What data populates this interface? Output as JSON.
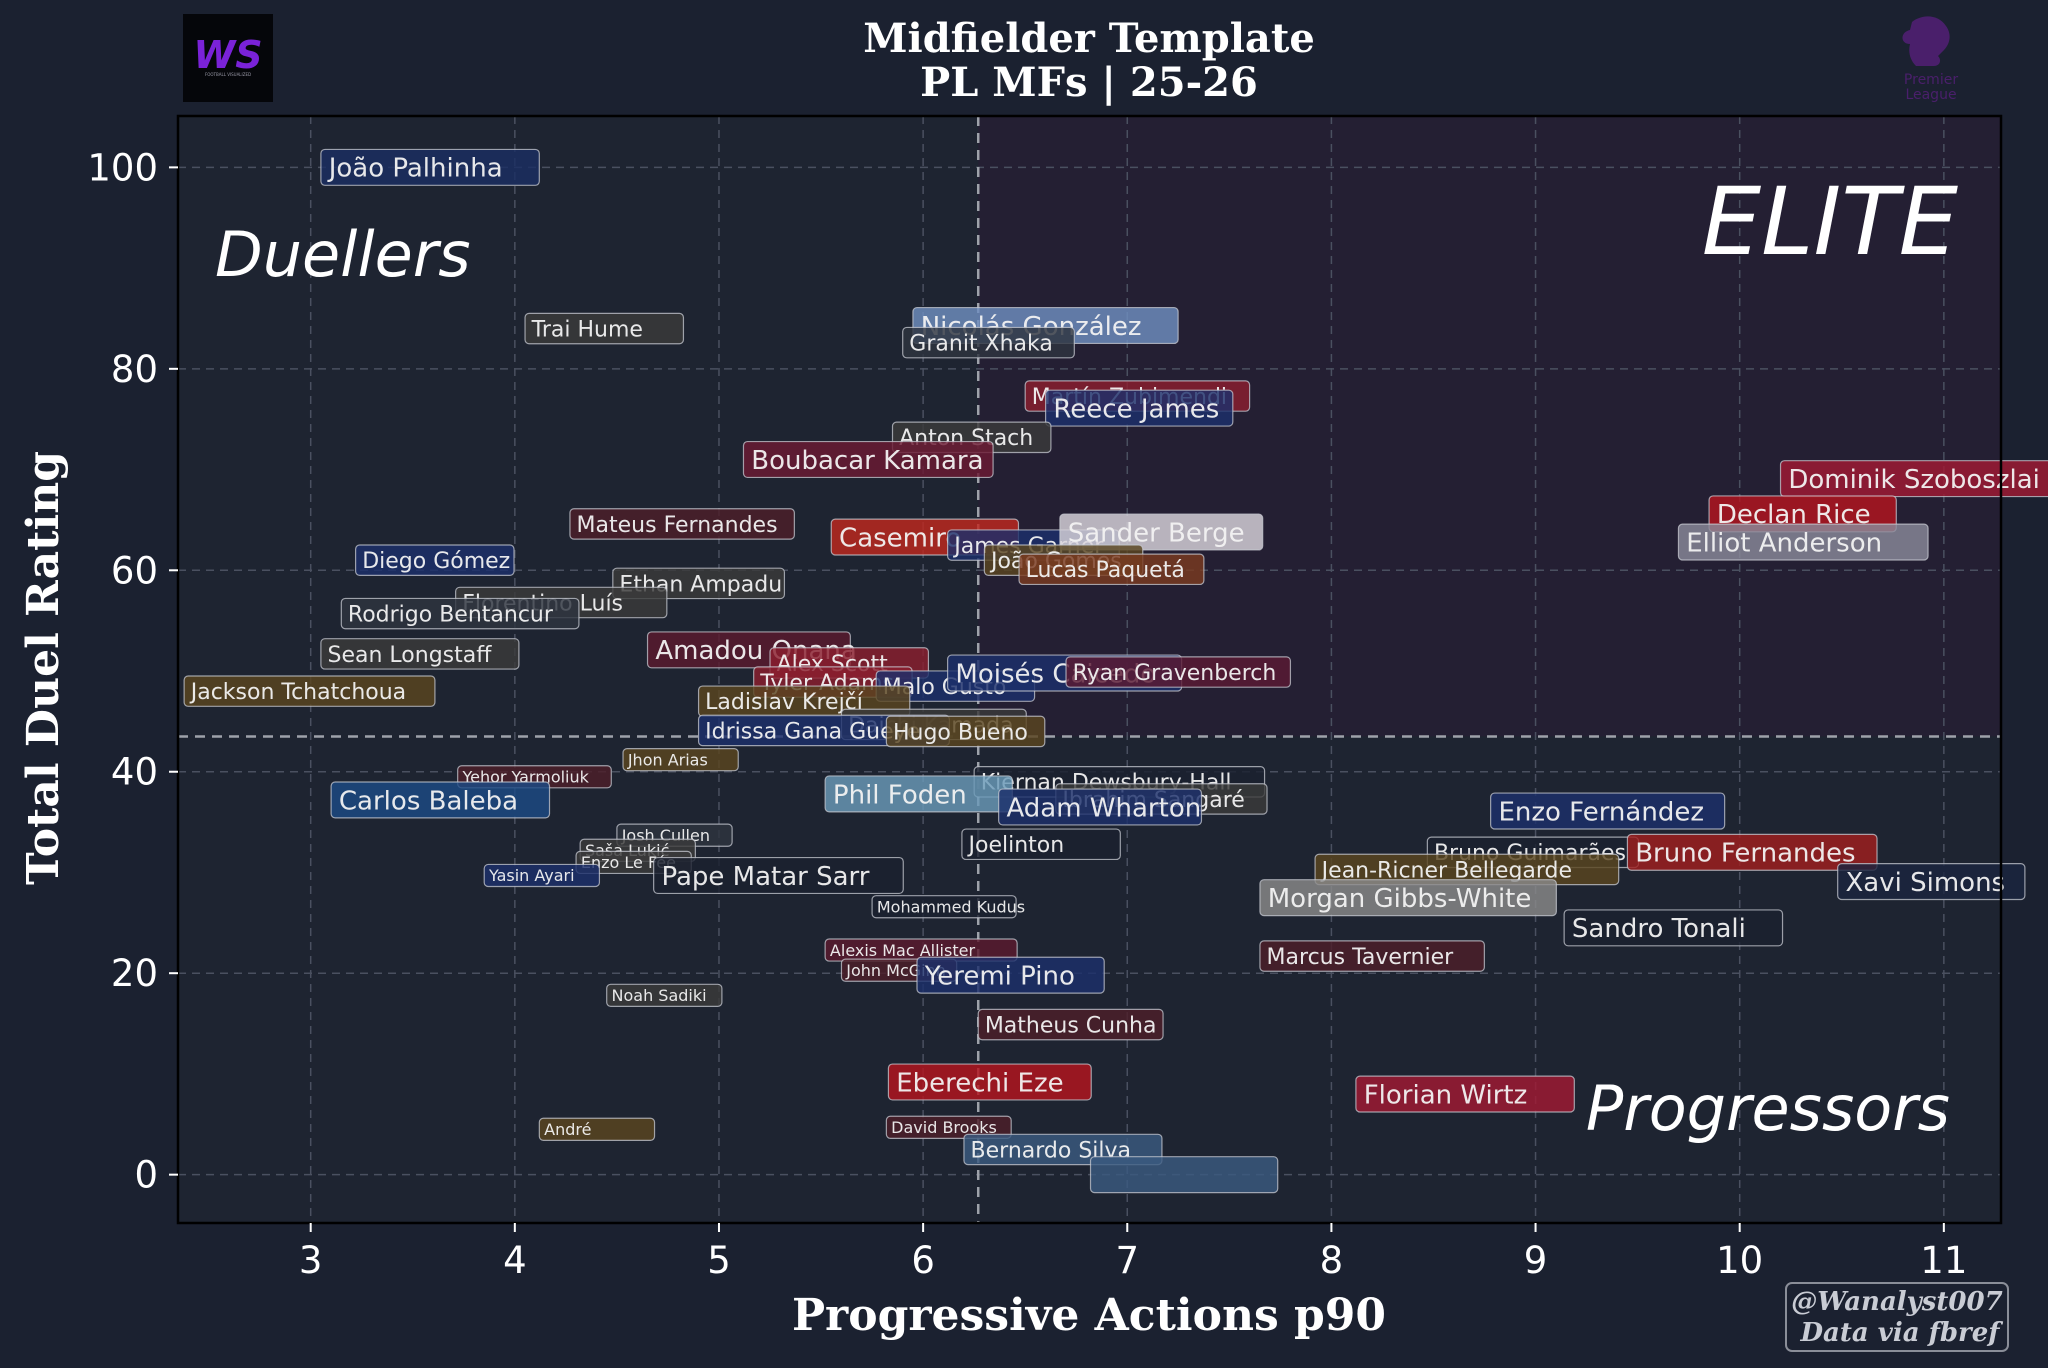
{
  "logos": {
    "left_text": "WS",
    "left_subtext": "FOOTBALL VISUALIZED",
    "right_text_1": "Premier",
    "right_text_2": "League"
  },
  "credits": {
    "line1": "@Wanalyst007",
    "line2": "Data via fbref"
  },
  "chart_data": {
    "type": "scatter",
    "title": "Midfielder Template",
    "subtitle": "PL MFs | 25-26",
    "xlabel": "Progressive Actions p90",
    "ylabel": "Total Duel Rating",
    "xlim": [
      2.35,
      11.28
    ],
    "ylim": [
      -4.8,
      105.1
    ],
    "xticks": [
      3,
      4,
      5,
      6,
      7,
      8,
      9,
      10,
      11
    ],
    "yticks": [
      0,
      20,
      40,
      60,
      80,
      100
    ],
    "grid": true,
    "x_mean": 6.27,
    "y_mean": 43.5,
    "quadrant_labels": {
      "top_left": "Duellers",
      "top_right": "ELITE",
      "bottom_right": "Progressors"
    },
    "colors": {
      "background": "#1b2130",
      "plot_top_right": "#241f33",
      "plot_other": "#1e2431",
      "grid": "#4a5060",
      "mean_line": "#9ea2aa"
    },
    "points": [
      {
        "name": "João Palhinha",
        "x": 3.05,
        "y": 100,
        "size": "l",
        "color": "#1b2e63"
      },
      {
        "name": "Trai Hume",
        "x": 4.05,
        "y": 84,
        "size": "m",
        "color": "#3a3a3a"
      },
      {
        "name": "Nicolás González",
        "x": 5.95,
        "y": 84.3,
        "size": "l",
        "color": "#6f8fc0"
      },
      {
        "name": "Granit Xhaka",
        "x": 5.9,
        "y": 82.6,
        "size": "m",
        "color": "#2e3440"
      },
      {
        "name": "Martín Zubimendi",
        "x": 6.5,
        "y": 77.3,
        "size": "m",
        "color": "#8b1e2e"
      },
      {
        "name": "Reece James",
        "x": 6.6,
        "y": 76.1,
        "size": "l",
        "color": "#1c2f6b"
      },
      {
        "name": "Anton Stach",
        "x": 5.85,
        "y": 73.2,
        "size": "m",
        "color": "#3a3a3a"
      },
      {
        "name": "Boubacar Kamara",
        "x": 5.12,
        "y": 71,
        "size": "l",
        "color": "#6b1a33"
      },
      {
        "name": "Dominik Szoboszlai",
        "x": 10.2,
        "y": 69.1,
        "size": "l",
        "color": "#a11a33"
      },
      {
        "name": "Declan Rice",
        "x": 9.85,
        "y": 65.6,
        "size": "l",
        "color": "#b5151e"
      },
      {
        "name": "Mateus Fernandes",
        "x": 4.27,
        "y": 64.6,
        "size": "m",
        "color": "#4d1f2a"
      },
      {
        "name": "Casemiro",
        "x": 5.55,
        "y": 63.3,
        "size": "l",
        "color": "#c0281e"
      },
      {
        "name": "James Garner",
        "x": 6.12,
        "y": 62.5,
        "size": "m",
        "color": "#1c2f6b"
      },
      {
        "name": "Sander Berge",
        "x": 6.67,
        "y": 63.8,
        "size": "l",
        "color": "#d9d4dc"
      },
      {
        "name": "Elliot Anderson",
        "x": 9.7,
        "y": 62.8,
        "size": "l",
        "color": "#8a8a9a"
      },
      {
        "name": "Diego Gómez",
        "x": 3.22,
        "y": 61,
        "size": "m",
        "color": "#1c2f6b"
      },
      {
        "name": "João Gomes",
        "x": 6.3,
        "y": 61,
        "size": "m",
        "color": "#5a4520"
      },
      {
        "name": "Lucas Paquetá",
        "x": 6.47,
        "y": 60.1,
        "size": "m",
        "color": "#7a3a20"
      },
      {
        "name": "Ethan Ampadu",
        "x": 4.48,
        "y": 58.7,
        "size": "m",
        "color": "#3a3a3a"
      },
      {
        "name": "Florentino Luís",
        "x": 3.71,
        "y": 56.8,
        "size": "m",
        "color": "#3a3a3a"
      },
      {
        "name": "Rodrigo Bentancur",
        "x": 3.15,
        "y": 55.7,
        "size": "m",
        "color": "#2e3440"
      },
      {
        "name": "Sean Longstaff",
        "x": 3.05,
        "y": 51.7,
        "size": "m",
        "color": "#3a3a3a"
      },
      {
        "name": "Amadou Onana",
        "x": 4.65,
        "y": 52.1,
        "size": "l",
        "color": "#5a1a2e"
      },
      {
        "name": "Alex Scott",
        "x": 5.25,
        "y": 50.8,
        "size": "m",
        "color": "#8b1e2e"
      },
      {
        "name": "Tyler Adams",
        "x": 5.17,
        "y": 48.9,
        "size": "m",
        "color": "#8b1e2e"
      },
      {
        "name": "Malo Gusto",
        "x": 5.77,
        "y": 48.5,
        "size": "m",
        "color": "#1c2f6b"
      },
      {
        "name": "Moisés Caicedo",
        "x": 6.12,
        "y": 49.8,
        "size": "l",
        "color": "#1c2f6b"
      },
      {
        "name": "Ryan Gravenberch",
        "x": 6.7,
        "y": 49.9,
        "size": "m",
        "color": "#5a1a33"
      },
      {
        "name": "Jackson Tchatchoua",
        "x": 2.38,
        "y": 48,
        "size": "m",
        "color": "#5a4520"
      },
      {
        "name": "Ladislav Krejčí",
        "x": 4.9,
        "y": 47,
        "size": "m",
        "color": "#5a4520"
      },
      {
        "name": "Daichi Kamada",
        "x": 5.6,
        "y": 44.7,
        "size": "m",
        "color": "#3a3a3a"
      },
      {
        "name": "Idrissa Gana Gueye",
        "x": 4.9,
        "y": 44.1,
        "size": "m",
        "color": "#1c2f6b"
      },
      {
        "name": "Hugo Bueno",
        "x": 5.82,
        "y": 44,
        "size": "m",
        "color": "#5a4520"
      },
      {
        "name": "Jhon Arias",
        "x": 4.53,
        "y": 41.2,
        "size": "s",
        "color": "#5a4520"
      },
      {
        "name": "Yehor Yarmoliuk",
        "x": 3.72,
        "y": 39.5,
        "size": "s",
        "color": "#4d1f2a"
      },
      {
        "name": "Kiernan Dewsbury-Hall",
        "x": 6.25,
        "y": 39,
        "size": "m",
        "color": "#1b2130"
      },
      {
        "name": "Ibrahim Sangaré",
        "x": 6.65,
        "y": 37.3,
        "size": "m",
        "color": "#3a3a3a"
      },
      {
        "name": "Phil Foden",
        "x": 5.52,
        "y": 37.8,
        "size": "l",
        "color": "#6a9ab8"
      },
      {
        "name": "Adam Wharton",
        "x": 6.37,
        "y": 36.5,
        "size": "l",
        "color": "#1c2f6b"
      },
      {
        "name": "Carlos Baleba",
        "x": 3.1,
        "y": 37.2,
        "size": "l",
        "color": "#1c4a85"
      },
      {
        "name": "Enzo Fernández",
        "x": 8.78,
        "y": 36.1,
        "size": "l",
        "color": "#1c2f6b"
      },
      {
        "name": "Josh Cullen",
        "x": 4.5,
        "y": 33.7,
        "size": "s",
        "color": "#2e3440"
      },
      {
        "name": "Joelinton",
        "x": 6.19,
        "y": 32.8,
        "size": "m",
        "color": "#1b2130"
      },
      {
        "name": "Saša Lukić",
        "x": 4.32,
        "y": 32.2,
        "size": "s",
        "color": "#3a3a3a"
      },
      {
        "name": "Bruno Guimarães",
        "x": 8.47,
        "y": 32,
        "size": "m",
        "color": "#1b2130"
      },
      {
        "name": "Bruno Fernandes",
        "x": 9.45,
        "y": 32,
        "size": "l",
        "color": "#a01e1e"
      },
      {
        "name": "Enzo Le Fée",
        "x": 4.3,
        "y": 31,
        "size": "s",
        "color": "#3a3a3a"
      },
      {
        "name": "Jean-Ricner Bellegarde",
        "x": 7.92,
        "y": 30.3,
        "size": "m",
        "color": "#5a4520"
      },
      {
        "name": "Yasin Ayari",
        "x": 3.85,
        "y": 29.7,
        "size": "s",
        "color": "#1c2f6b"
      },
      {
        "name": "Pape Matar Sarr",
        "x": 4.68,
        "y": 29.7,
        "size": "l",
        "color": "#1b2130"
      },
      {
        "name": "Xavi Simons",
        "x": 10.48,
        "y": 29.1,
        "size": "l",
        "color": "#1b2440"
      },
      {
        "name": "Morgan Gibbs-White",
        "x": 7.65,
        "y": 27.5,
        "size": "l",
        "color": "#8a8a8a"
      },
      {
        "name": "Mohammed Kudus",
        "x": 5.75,
        "y": 26.6,
        "size": "s",
        "color": "#1b2130"
      },
      {
        "name": "Sandro Tonali",
        "x": 9.14,
        "y": 24.5,
        "size": "l",
        "color": "#1b2130"
      },
      {
        "name": "Marcus Tavernier",
        "x": 7.65,
        "y": 21.7,
        "size": "m",
        "color": "#4d1f2a"
      },
      {
        "name": "Alexis Mac Allister",
        "x": 5.52,
        "y": 22.3,
        "size": "s",
        "color": "#5a1a2e"
      },
      {
        "name": "John McGinn",
        "x": 5.6,
        "y": 20.3,
        "size": "s",
        "color": "#4d1f2a"
      },
      {
        "name": "Yeremi Pino",
        "x": 5.97,
        "y": 19.8,
        "size": "l",
        "color": "#1c2f6b"
      },
      {
        "name": "Noah Sadiki",
        "x": 4.45,
        "y": 17.8,
        "size": "s",
        "color": "#3a3a3a"
      },
      {
        "name": "Matheus Cunha",
        "x": 6.27,
        "y": 14.9,
        "size": "m",
        "color": "#4d1f2a"
      },
      {
        "name": "Eberechi Eze",
        "x": 5.83,
        "y": 9.2,
        "size": "l",
        "color": "#b5151e"
      },
      {
        "name": "Florian Wirtz",
        "x": 8.12,
        "y": 8,
        "size": "l",
        "color": "#a11a33"
      },
      {
        "name": "David Brooks",
        "x": 5.82,
        "y": 4.7,
        "size": "s",
        "color": "#4d1f2a"
      },
      {
        "name": "André",
        "x": 4.12,
        "y": 4.5,
        "size": "s",
        "color": "#5a4520"
      },
      {
        "name": "Bernardo Silva",
        "x": 6.2,
        "y": 2.5,
        "size": "m",
        "color": "#3a5a80"
      },
      {
        "name": "",
        "x": 6.82,
        "y": 0,
        "size": "l",
        "color": "#3a5a80"
      }
    ]
  }
}
